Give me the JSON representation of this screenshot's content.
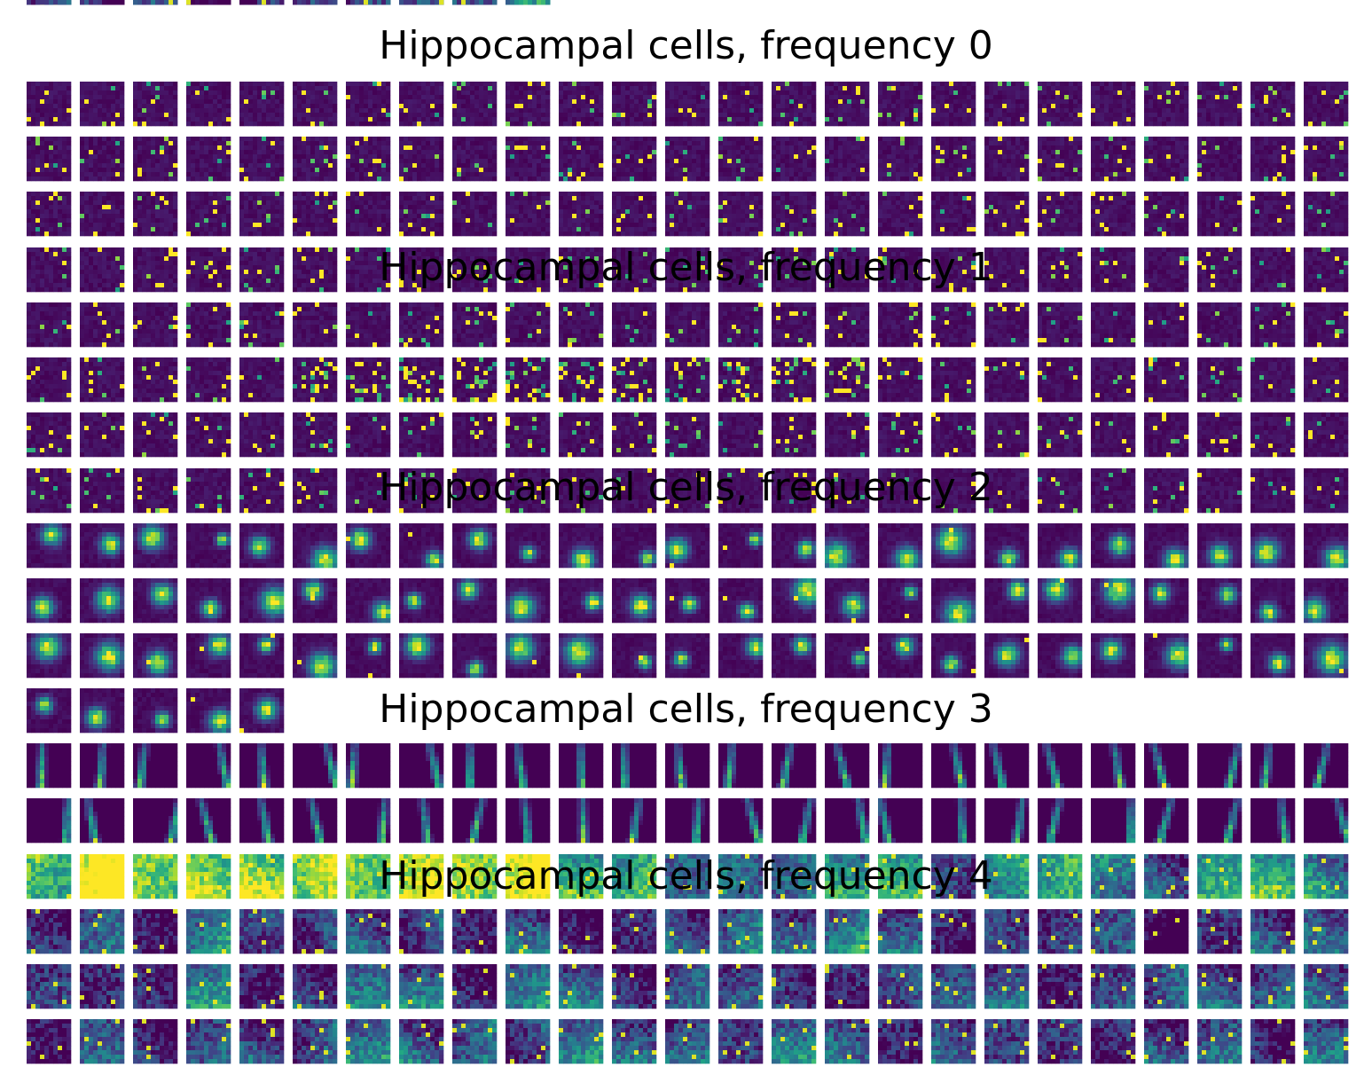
{
  "chart_data": {
    "type": "heatmap",
    "colormap": "viridis",
    "colors": {
      "background": "#ffffff",
      "low": "#440154",
      "high": "#fde725"
    },
    "grid_columns": 25,
    "groups": [
      {
        "title": "Hippocampal cells, frequency 0",
        "pattern": "sparse-spots",
        "cells": 100
      },
      {
        "title": "Hippocampal cells, frequency 1",
        "pattern": "dense-spots",
        "cells": 100
      },
      {
        "title": "Hippocampal cells, frequency 2",
        "pattern": "place-field-blob",
        "cells": 80
      },
      {
        "title": "Hippocampal cells, frequency 3",
        "pattern": "vertical-streak",
        "cells": 50
      },
      {
        "title": "Hippocampal cells, frequency 4",
        "pattern": "broad-gradient",
        "cells": 110
      }
    ]
  }
}
